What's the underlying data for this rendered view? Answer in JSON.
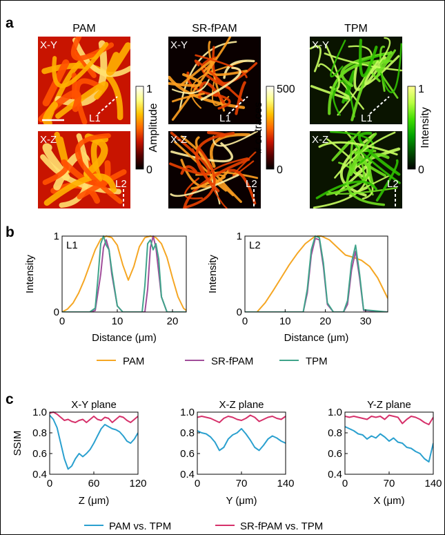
{
  "panels": {
    "a": {
      "label": "a",
      "columns": [
        {
          "title": "PAM",
          "xy": "X-Y",
          "xz": "X-Z",
          "line1": "L1",
          "line2": "L2",
          "colorbar": {
            "label": "Amplitude",
            "max": "1",
            "min": "0",
            "stops": [
              "#000000",
              "#5a0000",
              "#c81400",
              "#ff6a00",
              "#ffc200",
              "#ffff80",
              "#ffffff"
            ]
          }
        },
        {
          "title": "SR-fPAM",
          "xy": "X-Y",
          "xz": "X-Z",
          "line1": "L1",
          "line2": "L2",
          "colorbar": {
            "label": "# of traces",
            "max": "500",
            "min": "0",
            "stops": [
              "#000000",
              "#5a0000",
              "#c81400",
              "#ff6a00",
              "#ffc200",
              "#ffff80",
              "#ffffff"
            ]
          }
        },
        {
          "title": "TPM",
          "xy": "X-Y",
          "xz": "X-Z",
          "line1": "L1",
          "line2": "L2",
          "colorbar": {
            "label": "Intensity",
            "max": "1",
            "min": "0",
            "stops": [
              "#000000",
              "#004d00",
              "#00a000",
              "#40dd00",
              "#b8ff40",
              "#ffff90"
            ]
          }
        }
      ]
    },
    "b": {
      "label": "b"
    },
    "c": {
      "label": "c"
    }
  },
  "colors": {
    "PAM": "#f5a623",
    "SR-fPAM": "#a04d9a",
    "TPM": "#3fa38a",
    "pam_vs_tpm": "#2aa0cf",
    "srfpam_vs_tpm": "#d6306a"
  },
  "chart_data": [
    {
      "type": "line",
      "annotation": "L1",
      "xlabel": "Distance (μm)",
      "ylabel": "Intensity",
      "xlim": [
        0,
        22.5
      ],
      "ylim": [
        0,
        1
      ],
      "xticks": [
        0,
        10,
        20
      ],
      "yticks": [
        0,
        1
      ],
      "series": [
        {
          "name": "PAM",
          "x": [
            0,
            1,
            2,
            3,
            4,
            5,
            6,
            7,
            8,
            9,
            10,
            11,
            12,
            13,
            14,
            15,
            16,
            17,
            18,
            19,
            20,
            21,
            22,
            22.5
          ],
          "values": [
            0,
            0.04,
            0.12,
            0.25,
            0.42,
            0.62,
            0.82,
            0.96,
            1.0,
            0.98,
            0.88,
            0.62,
            0.42,
            0.6,
            0.86,
            0.98,
            1.0,
            0.98,
            0.9,
            0.72,
            0.45,
            0.2,
            0.05,
            0.02
          ]
        },
        {
          "name": "SR-fPAM",
          "x": [
            0,
            5,
            6,
            7,
            7.5,
            8,
            8.5,
            9,
            10,
            11,
            15,
            15.5,
            16,
            16.5,
            17,
            18,
            19,
            22.5
          ],
          "values": [
            0,
            0,
            0.02,
            0.5,
            0.85,
            0.95,
            0.82,
            0.5,
            0.08,
            0,
            0,
            0.3,
            0.85,
            1.0,
            0.85,
            0.2,
            0,
            0
          ]
        },
        {
          "name": "TPM",
          "x": [
            0,
            5,
            6,
            6.5,
            7,
            7.5,
            8,
            8.5,
            9,
            10,
            11,
            14.5,
            15,
            15.5,
            16,
            16.5,
            17,
            17.5,
            18,
            19,
            22.5
          ],
          "values": [
            0,
            0,
            0.05,
            0.45,
            0.9,
            1.0,
            0.88,
            0.82,
            0.55,
            0.08,
            0,
            0,
            0.35,
            0.9,
            0.95,
            0.82,
            0.9,
            0.7,
            0.2,
            0,
            0
          ]
        }
      ]
    },
    {
      "type": "line",
      "annotation": "L2",
      "xlabel": "Distance (μm)",
      "ylabel": "Intensity",
      "xlim": [
        0,
        35.5
      ],
      "ylim": [
        0,
        1
      ],
      "xticks": [
        0,
        10,
        20,
        30
      ],
      "yticks": [
        0,
        1
      ],
      "series": [
        {
          "name": "PAM",
          "x": [
            3,
            5,
            7,
            9,
            11,
            13,
            15,
            17,
            18,
            19,
            21,
            23,
            25,
            27,
            29,
            31,
            33,
            35.5
          ],
          "values": [
            0,
            0.12,
            0.28,
            0.45,
            0.62,
            0.77,
            0.9,
            0.98,
            1.0,
            1.0,
            0.95,
            0.85,
            0.75,
            0.72,
            0.68,
            0.6,
            0.45,
            0.18
          ]
        },
        {
          "name": "SR-fPAM",
          "x": [
            0,
            14.5,
            15.5,
            16.5,
            17.5,
            18.5,
            19.5,
            20.5,
            22,
            24.5,
            25.5,
            26.5,
            27.5,
            28.5,
            29.5,
            35.5
          ],
          "values": [
            0,
            0,
            0.25,
            0.75,
            0.97,
            0.95,
            0.6,
            0.1,
            0,
            0,
            0.1,
            0.55,
            0.8,
            0.45,
            0.02,
            0
          ]
        },
        {
          "name": "TPM",
          "x": [
            0,
            14.5,
            15.5,
            16.5,
            17.5,
            18.5,
            19.5,
            20.5,
            22,
            24.5,
            25.5,
            26.5,
            27.5,
            28.5,
            29.5,
            35.5
          ],
          "values": [
            0,
            0,
            0.3,
            0.82,
            1.0,
            0.98,
            0.65,
            0.12,
            0,
            0,
            0.15,
            0.65,
            0.88,
            0.5,
            0.03,
            0
          ]
        }
      ]
    },
    {
      "type": "line",
      "title": "X-Y plane",
      "xlabel": "Z (μm)",
      "ylabel": "SSIM",
      "xlim": [
        0,
        120
      ],
      "ylim": [
        0.4,
        1.0
      ],
      "xticks": [
        0,
        60,
        120
      ],
      "yticks": [
        0.4,
        0.6,
        0.8,
        1.0
      ],
      "series": [
        {
          "name": "PAM vs. TPM",
          "x": [
            0,
            5,
            10,
            15,
            20,
            25,
            30,
            35,
            40,
            45,
            50,
            55,
            60,
            65,
            70,
            75,
            80,
            85,
            90,
            95,
            100,
            105,
            110,
            115,
            120
          ],
          "values": [
            0.97,
            0.93,
            0.85,
            0.7,
            0.55,
            0.45,
            0.48,
            0.55,
            0.6,
            0.57,
            0.6,
            0.64,
            0.7,
            0.77,
            0.84,
            0.88,
            0.86,
            0.84,
            0.83,
            0.81,
            0.77,
            0.72,
            0.7,
            0.74,
            0.8
          ]
        },
        {
          "name": "SR-fPAM vs. TPM",
          "x": [
            0,
            5,
            10,
            15,
            20,
            25,
            30,
            35,
            40,
            45,
            50,
            55,
            60,
            65,
            70,
            75,
            80,
            85,
            90,
            95,
            100,
            105,
            110,
            115,
            120
          ],
          "values": [
            0.99,
            1.0,
            0.98,
            0.95,
            0.92,
            0.93,
            0.91,
            0.9,
            0.92,
            0.93,
            0.9,
            0.93,
            0.96,
            0.93,
            0.92,
            0.95,
            0.94,
            0.9,
            0.93,
            0.96,
            0.95,
            0.92,
            0.9,
            0.93,
            0.96
          ]
        }
      ]
    },
    {
      "type": "line",
      "title": "X-Z plane",
      "xlabel": "Y (μm)",
      "ylabel": "",
      "xlim": [
        0,
        140
      ],
      "ylim": [
        0.4,
        1.0
      ],
      "xticks": [
        0,
        70,
        140
      ],
      "yticks": [
        0.4,
        0.6,
        0.8,
        1.0
      ],
      "series": [
        {
          "name": "PAM vs. TPM",
          "x": [
            0,
            7,
            14,
            21,
            28,
            35,
            42,
            49,
            56,
            63,
            70,
            77,
            84,
            91,
            98,
            105,
            112,
            119,
            126,
            133,
            140
          ],
          "values": [
            0.82,
            0.8,
            0.79,
            0.76,
            0.71,
            0.63,
            0.66,
            0.74,
            0.78,
            0.8,
            0.84,
            0.79,
            0.73,
            0.66,
            0.63,
            0.68,
            0.74,
            0.77,
            0.75,
            0.72,
            0.7
          ]
        },
        {
          "name": "SR-fPAM vs. TPM",
          "x": [
            0,
            7,
            14,
            21,
            28,
            35,
            42,
            49,
            56,
            63,
            70,
            77,
            84,
            91,
            98,
            105,
            112,
            119,
            126,
            133,
            140
          ],
          "values": [
            0.95,
            0.96,
            0.95,
            0.94,
            0.92,
            0.9,
            0.94,
            0.96,
            0.95,
            0.93,
            0.92,
            0.94,
            0.97,
            0.95,
            0.91,
            0.93,
            0.95,
            0.96,
            0.94,
            0.93,
            0.96
          ]
        }
      ]
    },
    {
      "type": "line",
      "title": "Y-Z plane",
      "xlabel": "X (μm)",
      "ylabel": "",
      "xlim": [
        0,
        140
      ],
      "ylim": [
        0.4,
        1.0
      ],
      "xticks": [
        0,
        70,
        140
      ],
      "yticks": [
        0.4,
        0.6,
        0.8,
        1.0
      ],
      "series": [
        {
          "name": "PAM vs. TPM",
          "x": [
            0,
            7,
            14,
            21,
            28,
            35,
            42,
            49,
            56,
            63,
            70,
            77,
            84,
            91,
            98,
            105,
            112,
            119,
            126,
            133,
            140
          ],
          "values": [
            0.86,
            0.84,
            0.82,
            0.79,
            0.78,
            0.74,
            0.77,
            0.75,
            0.79,
            0.76,
            0.72,
            0.75,
            0.71,
            0.7,
            0.66,
            0.65,
            0.62,
            0.6,
            0.55,
            0.52,
            0.7
          ]
        },
        {
          "name": "SR-fPAM vs. TPM",
          "x": [
            0,
            7,
            14,
            21,
            28,
            35,
            42,
            49,
            56,
            63,
            70,
            77,
            84,
            91,
            98,
            105,
            112,
            119,
            126,
            133,
            140
          ],
          "values": [
            0.96,
            0.95,
            0.96,
            0.95,
            0.94,
            0.93,
            0.96,
            0.95,
            0.96,
            0.93,
            0.97,
            0.96,
            0.95,
            0.89,
            0.93,
            0.96,
            0.95,
            0.93,
            0.9,
            0.88,
            0.95
          ]
        }
      ]
    }
  ],
  "legends": {
    "b": [
      "PAM",
      "SR-fPAM",
      "TPM"
    ],
    "c": [
      "PAM vs. TPM",
      "SR-fPAM vs. TPM"
    ]
  }
}
